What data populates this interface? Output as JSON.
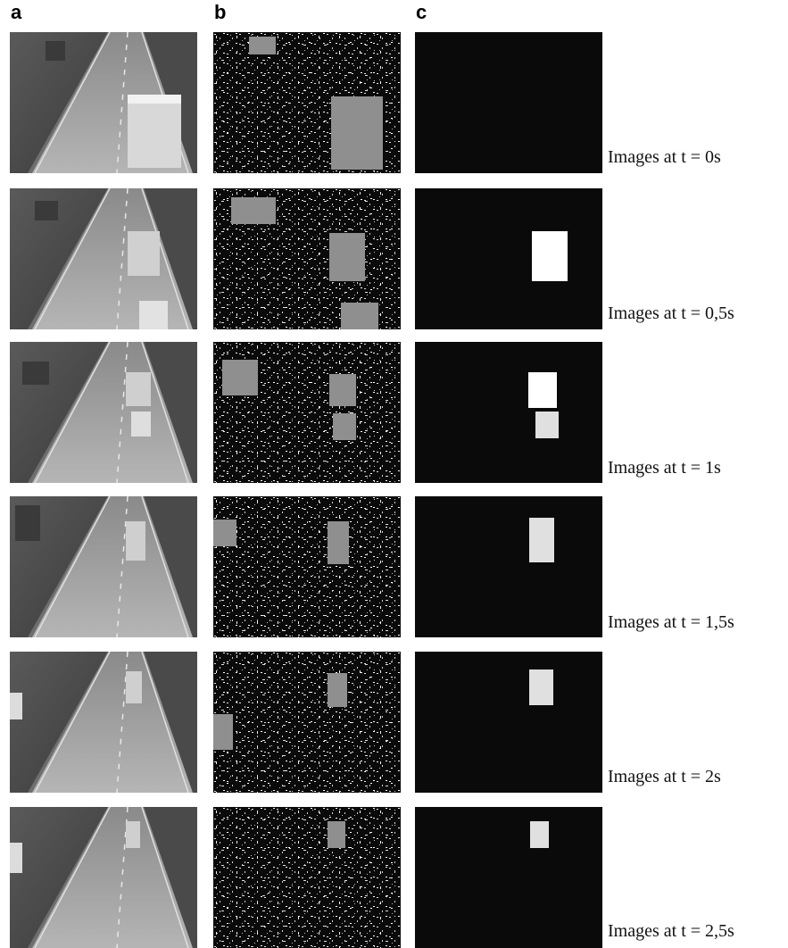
{
  "columns": [
    "a",
    "b",
    "c"
  ],
  "captions": [
    "Images at t = 0s",
    "Images at t = 0,5s",
    "Images at t = 1s",
    "Images at t = 1,5s",
    "Images at t = 2s",
    "Images at t = 2,5s"
  ]
}
